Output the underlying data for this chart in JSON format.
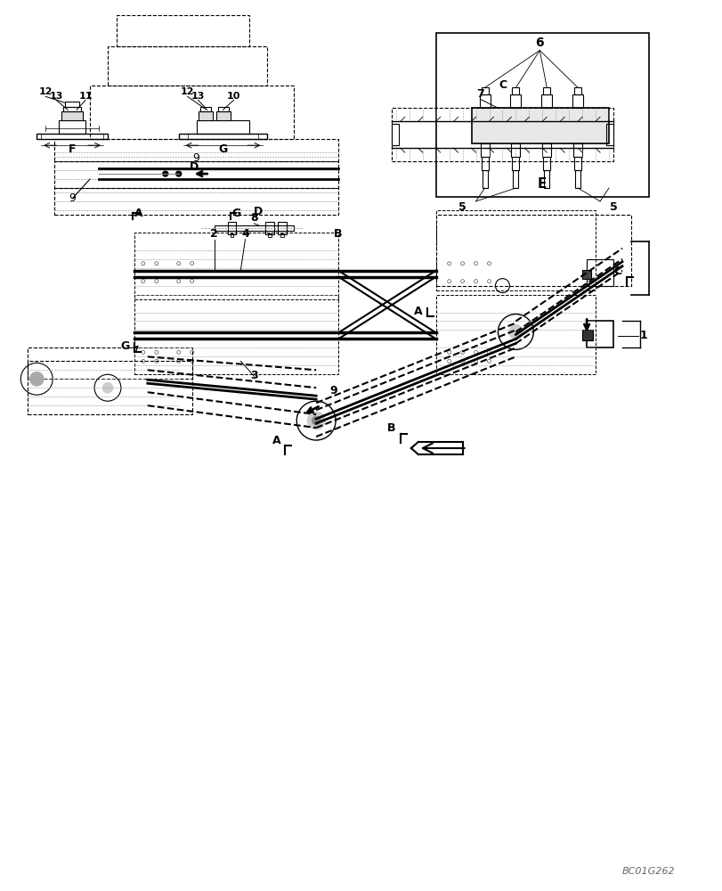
{
  "bg_color": "#ffffff",
  "line_color": "#000000",
  "dashed_color": "#333333",
  "fig_width": 8.12,
  "fig_height": 10.0,
  "watermark": "BC01G262",
  "labels": {
    "A_view": "A",
    "G_view": "G",
    "B_view": "B",
    "C_view": "C",
    "D_view": "D",
    "E_view": "E",
    "F_view": "F",
    "num_1": "1",
    "num_2": "2",
    "num_3": "3",
    "num_4": "4",
    "num_5a": "5",
    "num_5b": "5",
    "num_6": "6",
    "num_7": "7",
    "num_8": "8",
    "num_9a": "9",
    "num_9b": "9",
    "num_10": "10",
    "num_11": "11",
    "num_12a": "12",
    "num_12b": "12",
    "num_13a": "13",
    "num_13b": "13"
  }
}
